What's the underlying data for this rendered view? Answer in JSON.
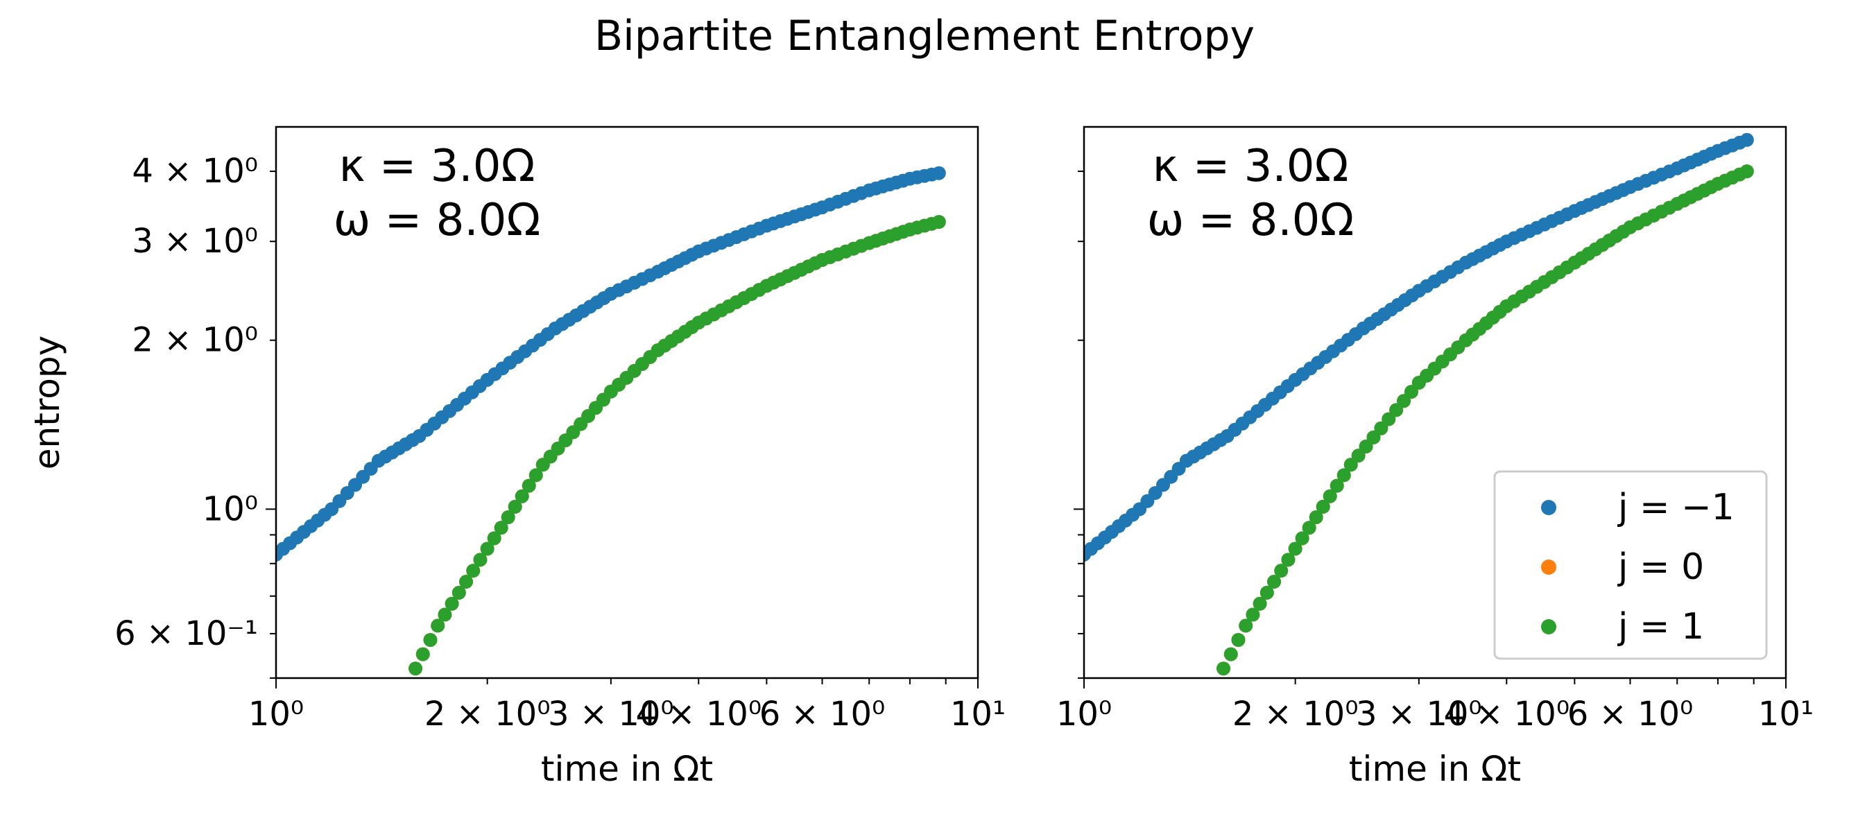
{
  "figure": {
    "title": "Bipartite Entanglement Entropy"
  },
  "chart_data": [
    {
      "type": "scatter",
      "xscale": "log",
      "yscale": "log",
      "xlim": [
        1,
        10
      ],
      "ylim": [
        0.5,
        4.8
      ],
      "xlabel": "time in Ωt",
      "ylabel": "entropy",
      "x_ticks": [
        {
          "value": 1,
          "label": "10⁰"
        },
        {
          "value": 2,
          "label": "2 × 10⁰"
        },
        {
          "value": 3,
          "label": "3 × 10⁰"
        },
        {
          "value": 4,
          "label": "4 × 10⁰"
        },
        {
          "value": 6,
          "label": "6 × 10⁰"
        },
        {
          "value": 10,
          "label": "10¹"
        }
      ],
      "y_ticks": [
        {
          "value": 0.6,
          "label": "6 × 10⁻¹"
        },
        {
          "value": 1,
          "label": "10⁰"
        },
        {
          "value": 2,
          "label": "2 × 10⁰"
        },
        {
          "value": 3,
          "label": "3 × 10⁰"
        },
        {
          "value": 4,
          "label": "4 × 10⁰"
        }
      ],
      "annotation": [
        "κ = 3.0Ω",
        "ω = 8.0Ω"
      ],
      "legend": null,
      "series": [
        {
          "name": "j = −1",
          "color": "#1f77b4",
          "points": [
            [
              1.0,
              0.83
            ],
            [
              1.2,
              1.0
            ],
            [
              1.4,
              1.22
            ],
            [
              1.6,
              1.35
            ],
            [
              2.0,
              1.7
            ],
            [
              2.5,
              2.1
            ],
            [
              3.0,
              2.42
            ],
            [
              3.5,
              2.65
            ],
            [
              4.0,
              2.88
            ],
            [
              5.0,
              3.2
            ],
            [
              6.0,
              3.45
            ],
            [
              7.0,
              3.7
            ],
            [
              8.0,
              3.88
            ],
            [
              8.8,
              3.97
            ]
          ]
        },
        {
          "name": "j = 0",
          "color": "#ff7f0e",
          "points": [
            [
              1.58,
              0.52
            ],
            [
              1.7,
              0.62
            ],
            [
              2.0,
              0.85
            ],
            [
              2.4,
              1.2
            ],
            [
              3.0,
              1.62
            ],
            [
              3.5,
              1.92
            ],
            [
              4.0,
              2.15
            ],
            [
              5.0,
              2.5
            ],
            [
              6.0,
              2.78
            ],
            [
              7.0,
              2.98
            ],
            [
              8.0,
              3.15
            ],
            [
              8.8,
              3.25
            ]
          ]
        },
        {
          "name": "j = 1",
          "color": "#2ca02c",
          "points": [
            [
              1.58,
              0.52
            ],
            [
              1.7,
              0.62
            ],
            [
              2.0,
              0.85
            ],
            [
              2.4,
              1.2
            ],
            [
              3.0,
              1.62
            ],
            [
              3.5,
              1.92
            ],
            [
              4.0,
              2.15
            ],
            [
              5.0,
              2.5
            ],
            [
              6.0,
              2.78
            ],
            [
              7.0,
              2.98
            ],
            [
              8.0,
              3.15
            ],
            [
              8.8,
              3.25
            ]
          ]
        }
      ]
    },
    {
      "type": "scatter",
      "xscale": "log",
      "yscale": "log",
      "xlim": [
        1,
        10
      ],
      "ylim": [
        0.5,
        4.8
      ],
      "xlabel": "time in Ωt",
      "ylabel": "",
      "x_ticks": [
        {
          "value": 1,
          "label": "10⁰"
        },
        {
          "value": 2,
          "label": "2 × 10⁰"
        },
        {
          "value": 3,
          "label": "3 × 10⁰"
        },
        {
          "value": 4,
          "label": "4 × 10⁰"
        },
        {
          "value": 6,
          "label": "6 × 10⁰"
        },
        {
          "value": 10,
          "label": "10¹"
        }
      ],
      "y_ticks": [
        {
          "value": 0.6,
          "label": ""
        },
        {
          "value": 1,
          "label": ""
        },
        {
          "value": 2,
          "label": ""
        },
        {
          "value": 3,
          "label": ""
        },
        {
          "value": 4,
          "label": ""
        }
      ],
      "annotation": [
        "κ = 3.0Ω",
        "ω = 8.0Ω"
      ],
      "legend": "lower right",
      "series": [
        {
          "name": "j = −1",
          "color": "#1f77b4",
          "points": [
            [
              1.0,
              0.83
            ],
            [
              1.2,
              1.0
            ],
            [
              1.4,
              1.22
            ],
            [
              1.6,
              1.35
            ],
            [
              2.0,
              1.7
            ],
            [
              2.5,
              2.1
            ],
            [
              3.0,
              2.45
            ],
            [
              3.5,
              2.75
            ],
            [
              4.0,
              3.0
            ],
            [
              5.0,
              3.4
            ],
            [
              6.0,
              3.75
            ],
            [
              7.0,
              4.05
            ],
            [
              8.0,
              4.35
            ],
            [
              8.8,
              4.55
            ]
          ]
        },
        {
          "name": "j = 0",
          "color": "#ff7f0e",
          "points": [
            [
              1.58,
              0.52
            ],
            [
              1.7,
              0.62
            ],
            [
              2.0,
              0.85
            ],
            [
              2.4,
              1.2
            ],
            [
              3.0,
              1.68
            ],
            [
              3.5,
              2.0
            ],
            [
              4.0,
              2.3
            ],
            [
              5.0,
              2.75
            ],
            [
              6.0,
              3.18
            ],
            [
              7.0,
              3.5
            ],
            [
              8.0,
              3.8
            ],
            [
              8.8,
              4.0
            ]
          ]
        },
        {
          "name": "j = 1",
          "color": "#2ca02c",
          "points": [
            [
              1.58,
              0.52
            ],
            [
              1.7,
              0.62
            ],
            [
              2.0,
              0.85
            ],
            [
              2.4,
              1.2
            ],
            [
              3.0,
              1.68
            ],
            [
              3.5,
              2.0
            ],
            [
              4.0,
              2.3
            ],
            [
              5.0,
              2.75
            ],
            [
              6.0,
              3.18
            ],
            [
              7.0,
              3.5
            ],
            [
              8.0,
              3.8
            ],
            [
              8.8,
              4.0
            ]
          ]
        }
      ]
    }
  ]
}
